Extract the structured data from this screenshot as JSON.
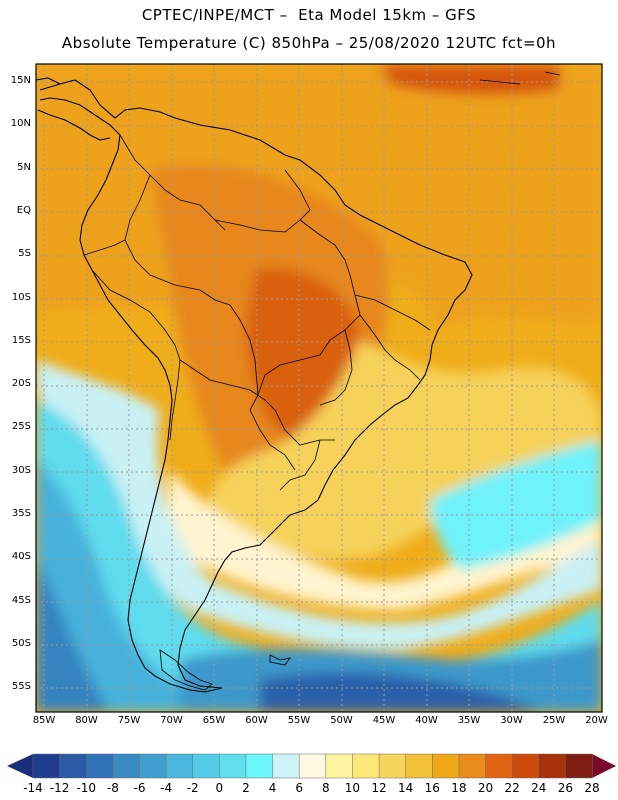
{
  "header": {
    "line1": "CPTEC/INPE/MCT –  Eta Model 15km – GFS",
    "line2": "Absolute Temperature (C) 850hPa – 25/08/2020 12UTC fct=0h"
  },
  "map": {
    "lat_labels": [
      "15N",
      "10N",
      "5N",
      "EQ",
      "5S",
      "10S",
      "15S",
      "20S",
      "25S",
      "30S",
      "35S",
      "40S",
      "45S",
      "50S",
      "55S"
    ],
    "lon_labels": [
      "85W",
      "80W",
      "75W",
      "70W",
      "65W",
      "60W",
      "55W",
      "50W",
      "45W",
      "40W",
      "35W",
      "30W",
      "25W",
      "20W"
    ],
    "colors": {
      "ocean_warm": "#efad1a",
      "land_base": "#e78d1d",
      "hot_core": "#d75a0e",
      "grid": "#9a9a9a",
      "border": "#000000"
    }
  },
  "colorbar": {
    "labels": [
      "-14",
      "-12",
      "-10",
      "-8",
      "-6",
      "-4",
      "-2",
      "0",
      "2",
      "4",
      "6",
      "8",
      "10",
      "12",
      "14",
      "16",
      "18",
      "20",
      "22",
      "24",
      "26",
      "28"
    ],
    "colors": [
      "#1f3d8f",
      "#2a5aa6",
      "#2f73b6",
      "#3a8ac4",
      "#3fa0d0",
      "#4bb7dc",
      "#54cbe6",
      "#5fdfee",
      "#6cf6fb",
      "#cdf3f6",
      "#fff8e3",
      "#fff5a0",
      "#ffe77a",
      "#f7d45a",
      "#f2c13a",
      "#efa818",
      "#e98c19",
      "#e16412",
      "#cd4a0b",
      "#a9310a",
      "#7f1d13"
    ],
    "left_arrow_color": "#1a2f7c",
    "right_arrow_color": "#7a0a2a"
  }
}
